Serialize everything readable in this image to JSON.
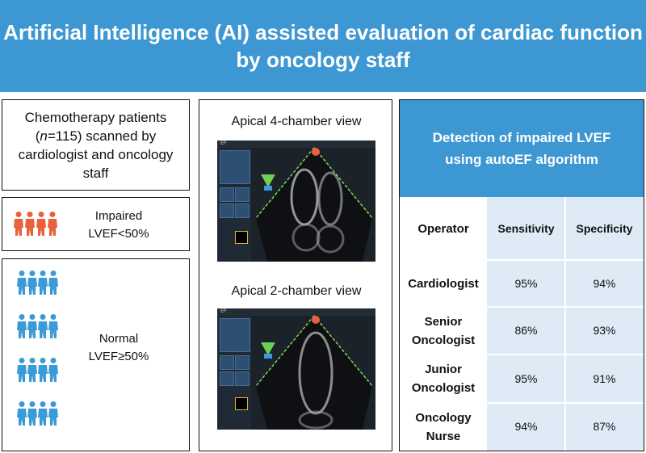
{
  "header": {
    "title_line1": "Artificial Intelligence (AI) assisted evaluation of cardiac function",
    "title_line2": "by oncology staff"
  },
  "cohort": {
    "line1": "Chemotherapy patients",
    "n_italic": "n",
    "n_rest": "=115)  scanned by",
    "line3": "cardiologist and oncology",
    "line4": "staff",
    "paren_open": "("
  },
  "impaired": {
    "line1": "Impaired",
    "line2": "LVEF<50%",
    "icon_color": "#e8613c",
    "icon_count": 4
  },
  "normal": {
    "line1": "Normal",
    "line2": "LVEF≥50%",
    "icon_color": "#3b9bd6",
    "icon_count": 16
  },
  "views": {
    "view1": "Apical 4-chamber view",
    "view2": "Apical 2-chamber view",
    "ui_label": "EF"
  },
  "results": {
    "title_line1": "Detection of impaired LVEF",
    "title_line2": "using autoEF algorithm",
    "columns": [
      "Operator",
      "Sensitivity",
      "Specificity"
    ],
    "rows": [
      {
        "op1": "Cardiologist",
        "op2": "",
        "sensitivity": "95%",
        "specificity": "94%"
      },
      {
        "op1": "Senior",
        "op2": "Oncologist",
        "sensitivity": "86%",
        "specificity": "93%"
      },
      {
        "op1": "Junior",
        "op2": "Oncologist",
        "sensitivity": "95%",
        "specificity": "91%"
      },
      {
        "op1": "Oncology",
        "op2": "Nurse",
        "sensitivity": "94%",
        "specificity": "87%"
      }
    ]
  },
  "colors": {
    "header_blue": "#3d97d3",
    "cell_blue": "#deeaf6",
    "scan_line_green": "#7ed957"
  }
}
